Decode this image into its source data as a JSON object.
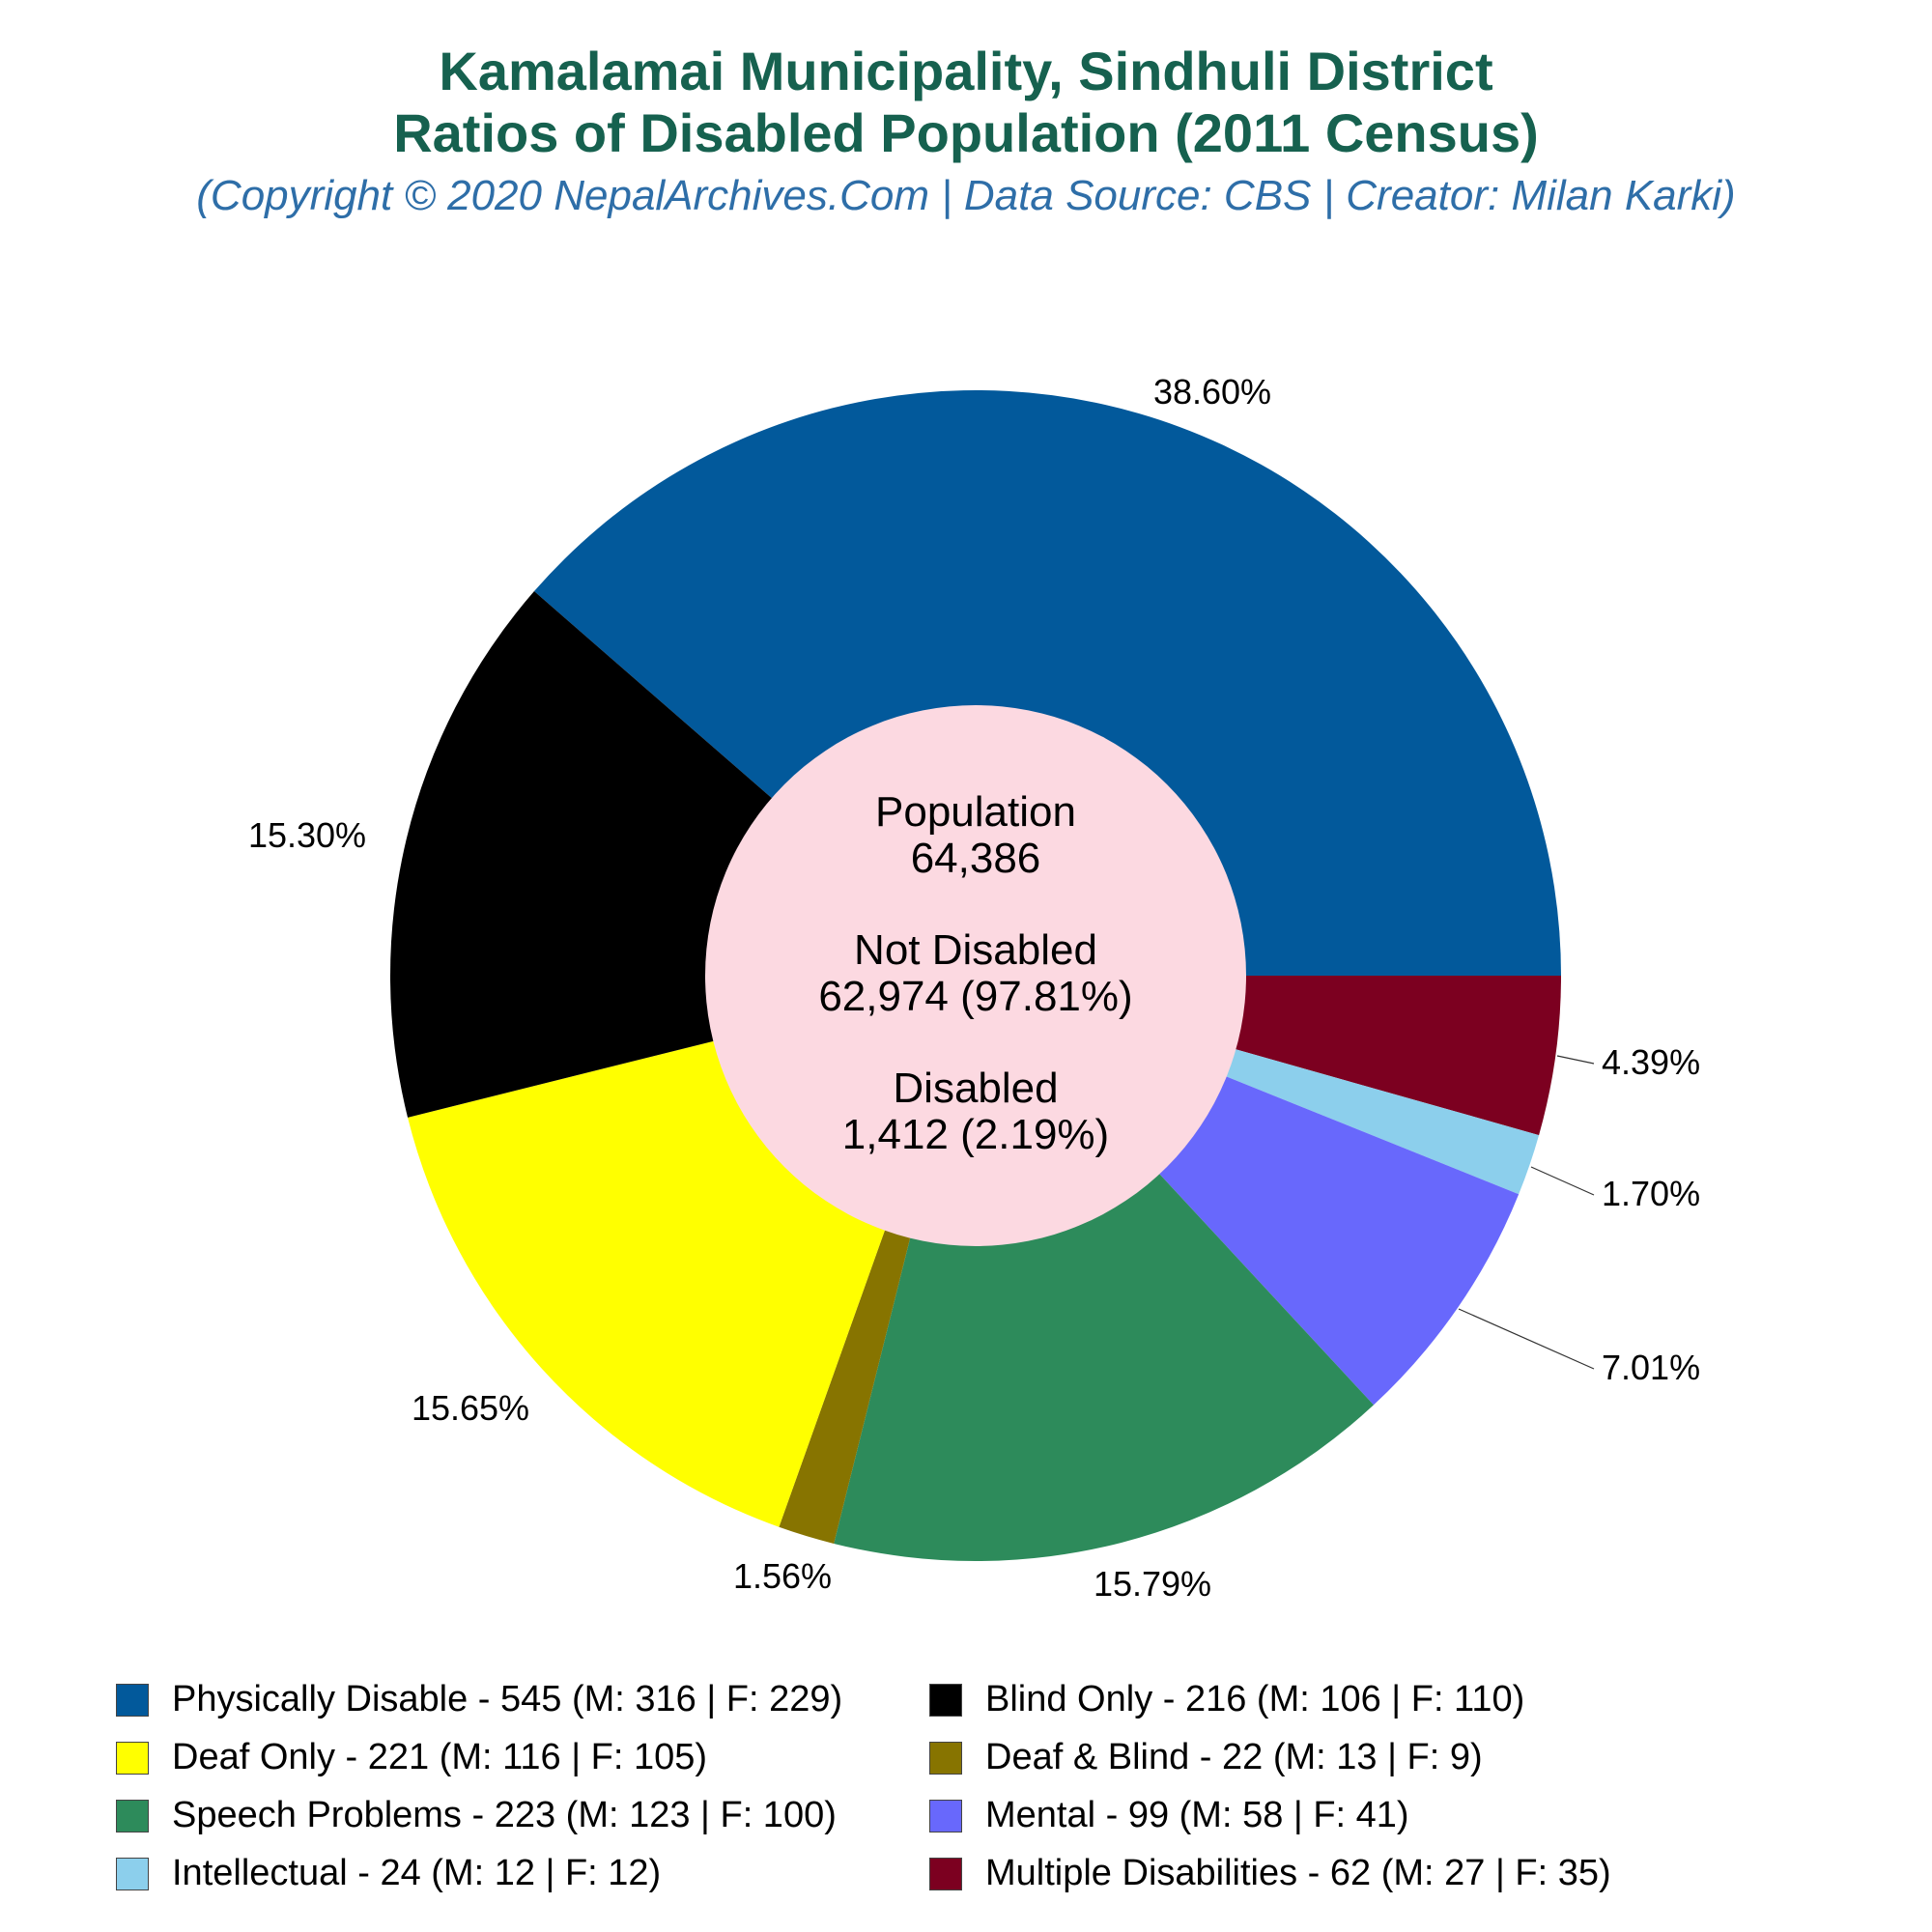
{
  "header": {
    "title_line1": "Kamalamai Municipality, Sindhuli District",
    "title_line2": "Ratios of Disabled Population (2011 Census)",
    "subtitle": "(Copyright © 2020 NepalArchives.Com | Data Source: CBS | Creator: Milan Karki)"
  },
  "center": {
    "population_label": "Population",
    "population_value": "64,386",
    "not_disabled_label": "Not Disabled",
    "not_disabled_value": "62,974 (97.81%)",
    "disabled_label": "Disabled",
    "disabled_value": "1,412 (2.19%)",
    "color": "#fcd9e1"
  },
  "chart_data": {
    "type": "pie",
    "donut": true,
    "slices": [
      {
        "label": "Physically Disable",
        "value": 545,
        "male": 316,
        "female": 229,
        "percent": "38.60%",
        "color": "#02599b"
      },
      {
        "label": "Multiple Disabilities",
        "value": 62,
        "male": 27,
        "female": 35,
        "percent": "4.39%",
        "color": "#7c0020"
      },
      {
        "label": "Intellectual",
        "value": 24,
        "male": 12,
        "female": 12,
        "percent": "1.70%",
        "color": "#8ccfec"
      },
      {
        "label": "Mental",
        "value": 99,
        "male": 58,
        "female": 41,
        "percent": "7.01%",
        "color": "#6868fc"
      },
      {
        "label": "Speech Problems",
        "value": 223,
        "male": 123,
        "female": 100,
        "percent": "15.79%",
        "color": "#2d8b5b"
      },
      {
        "label": "Deaf & Blind",
        "value": 22,
        "male": 13,
        "female": 9,
        "percent": "1.56%",
        "color": "#877400"
      },
      {
        "label": "Deaf Only",
        "value": 221,
        "male": 116,
        "female": 105,
        "percent": "15.65%",
        "color": "#ffff00"
      },
      {
        "label": "Blind Only",
        "value": 216,
        "male": 106,
        "female": 110,
        "percent": "15.30%",
        "color": "#000000"
      }
    ]
  },
  "legend": [
    {
      "text": "Physically Disable - 545 (M: 316 | F: 229)",
      "color": "#02599b"
    },
    {
      "text": "Blind Only - 216 (M: 106 | F: 110)",
      "color": "#000000"
    },
    {
      "text": "Deaf Only - 221 (M: 116 | F: 105)",
      "color": "#ffff00"
    },
    {
      "text": "Deaf & Blind - 22 (M: 13 | F: 9)",
      "color": "#877400"
    },
    {
      "text": "Speech Problems - 223 (M: 123 | F: 100)",
      "color": "#2d8b5b"
    },
    {
      "text": "Mental - 99 (M: 58 | F: 41)",
      "color": "#6868fc"
    },
    {
      "text": "Intellectual - 24 (M: 12 | F: 12)",
      "color": "#8ccfec"
    },
    {
      "text": "Multiple Disabilities - 62 (M: 27 | F: 35)",
      "color": "#7c0020"
    }
  ]
}
